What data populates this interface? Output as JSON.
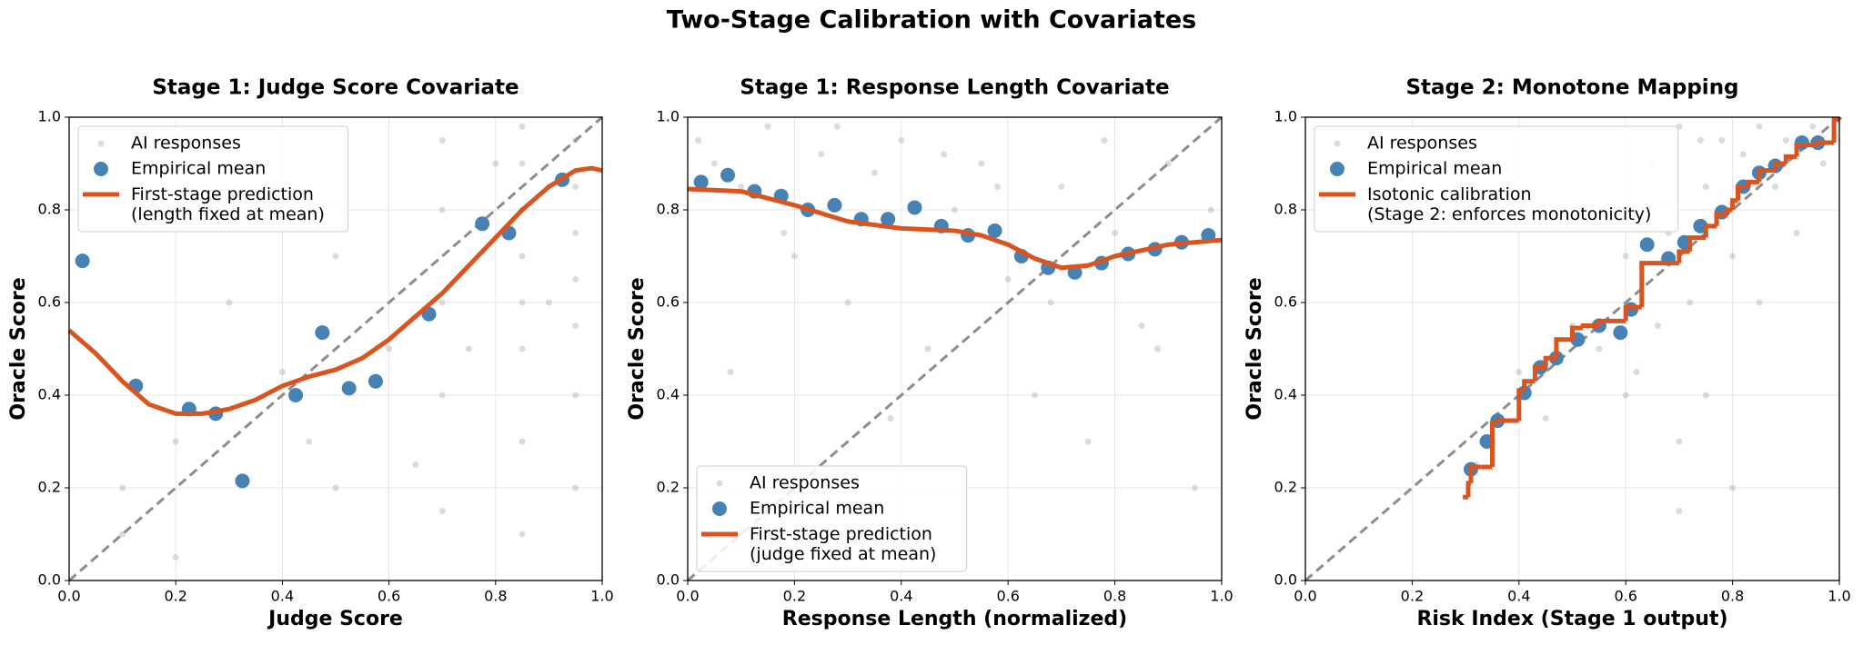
{
  "title": "Two-Stage Calibration with Covariates",
  "chart_data": [
    {
      "type": "scatter",
      "title": "Stage 1: Judge Score Covariate",
      "xlabel": "Judge Score",
      "ylabel": "Oracle Score",
      "xlim": [
        0,
        1
      ],
      "ylim": [
        0,
        1
      ],
      "xticks": [
        {
          "value": 0,
          "label": "0.0"
        },
        {
          "value": 0.2,
          "label": "0.2"
        },
        {
          "value": 0.4,
          "label": "0.4"
        },
        {
          "value": 0.6,
          "label": "0.6"
        },
        {
          "value": 0.8,
          "label": "0.8"
        },
        {
          "value": 1,
          "label": "1.0"
        }
      ],
      "yticks": [
        {
          "value": 0,
          "label": "0.0"
        },
        {
          "value": 0.2,
          "label": "0.2"
        },
        {
          "value": 0.4,
          "label": "0.4"
        },
        {
          "value": 0.6,
          "label": "0.6"
        },
        {
          "value": 0.8,
          "label": "0.8"
        },
        {
          "value": 1,
          "label": "1.0"
        }
      ],
      "grid": true,
      "legend": "upper left",
      "series": [
        {
          "name": "AI responses",
          "mark": "points",
          "color": "#9a9a9a",
          "x": [
            0.85,
            0.85,
            0.85,
            0.85,
            0.85,
            0.85,
            0.85,
            0.85,
            0.95,
            0.95,
            0.95,
            0.95,
            0.95,
            0.95,
            0.95,
            0.7,
            0.7,
            0.7,
            0.7,
            0.7,
            0.1,
            0.1,
            0.2,
            0.2,
            0.3,
            0.45,
            0.5,
            0.5,
            0.6,
            0.65,
            0.8,
            0.9,
            0.75,
            0.4
          ],
          "values": [
            0.98,
            0.9,
            0.8,
            0.7,
            0.6,
            0.5,
            0.3,
            0.1,
            0.95,
            0.85,
            0.75,
            0.65,
            0.55,
            0.4,
            0.2,
            0.95,
            0.8,
            0.6,
            0.4,
            0.15,
            0.2,
            0.1,
            0.3,
            0.05,
            0.6,
            0.3,
            0.7,
            0.2,
            0.5,
            0.25,
            0.9,
            0.6,
            0.5,
            0.45
          ]
        },
        {
          "name": "Empirical mean",
          "mark": "dots",
          "color": "#4682b4",
          "x": [
            0.025,
            0.125,
            0.225,
            0.275,
            0.325,
            0.425,
            0.475,
            0.525,
            0.575,
            0.675,
            0.775,
            0.825,
            0.925
          ],
          "values": [
            0.69,
            0.42,
            0.37,
            0.36,
            0.215,
            0.4,
            0.535,
            0.415,
            0.43,
            0.575,
            0.77,
            0.75,
            0.865
          ]
        },
        {
          "name": "First-stage prediction\n(length fixed at mean)",
          "mark": "line",
          "color": "#d9541e",
          "x": [
            0,
            0.05,
            0.1,
            0.15,
            0.2,
            0.25,
            0.3,
            0.35,
            0.4,
            0.45,
            0.5,
            0.55,
            0.6,
            0.65,
            0.7,
            0.75,
            0.8,
            0.85,
            0.9,
            0.95,
            0.98,
            1
          ],
          "values": [
            0.54,
            0.49,
            0.43,
            0.38,
            0.36,
            0.36,
            0.37,
            0.39,
            0.42,
            0.44,
            0.455,
            0.48,
            0.52,
            0.57,
            0.62,
            0.68,
            0.74,
            0.8,
            0.85,
            0.885,
            0.89,
            0.885
          ]
        }
      ]
    },
    {
      "type": "scatter",
      "title": "Stage 1: Response Length Covariate",
      "xlabel": "Response Length (normalized)",
      "ylabel": "Oracle Score",
      "xlim": [
        0,
        1
      ],
      "ylim": [
        0,
        1
      ],
      "xticks": [
        {
          "value": 0,
          "label": "0.0"
        },
        {
          "value": 0.2,
          "label": "0.2"
        },
        {
          "value": 0.4,
          "label": "0.4"
        },
        {
          "value": 0.6,
          "label": "0.6"
        },
        {
          "value": 0.8,
          "label": "0.8"
        },
        {
          "value": 1,
          "label": "1.0"
        }
      ],
      "yticks": [
        {
          "value": 0,
          "label": "0.0"
        },
        {
          "value": 0.2,
          "label": "0.2"
        },
        {
          "value": 0.4,
          "label": "0.4"
        },
        {
          "value": 0.6,
          "label": "0.6"
        },
        {
          "value": 0.8,
          "label": "0.8"
        },
        {
          "value": 1,
          "label": "1.0"
        }
      ],
      "grid": true,
      "legend": "lower left",
      "series": [
        {
          "name": "AI responses",
          "mark": "points",
          "color": "#9a9a9a",
          "x": [
            0.02,
            0.05,
            0.1,
            0.15,
            0.2,
            0.25,
            0.3,
            0.35,
            0.4,
            0.45,
            0.5,
            0.55,
            0.6,
            0.65,
            0.7,
            0.75,
            0.8,
            0.85,
            0.9,
            0.95,
            0.08,
            0.18,
            0.28,
            0.38,
            0.48,
            0.58,
            0.68,
            0.78,
            0.88,
            0.98
          ],
          "values": [
            0.95,
            0.9,
            0.85,
            0.98,
            0.7,
            0.92,
            0.6,
            0.88,
            0.95,
            0.5,
            0.8,
            0.9,
            0.65,
            0.4,
            0.85,
            0.3,
            0.75,
            0.55,
            0.9,
            0.2,
            0.45,
            0.75,
            0.98,
            0.35,
            0.92,
            0.85,
            0.6,
            0.95,
            0.5,
            0.8
          ]
        },
        {
          "name": "Empirical mean",
          "mark": "dots",
          "color": "#4682b4",
          "x": [
            0.025,
            0.075,
            0.125,
            0.175,
            0.225,
            0.275,
            0.325,
            0.375,
            0.425,
            0.475,
            0.525,
            0.575,
            0.625,
            0.675,
            0.725,
            0.775,
            0.825,
            0.875,
            0.925,
            0.975
          ],
          "values": [
            0.86,
            0.875,
            0.84,
            0.83,
            0.8,
            0.81,
            0.78,
            0.78,
            0.805,
            0.765,
            0.745,
            0.755,
            0.7,
            0.675,
            0.665,
            0.685,
            0.705,
            0.715,
            0.73,
            0.745
          ]
        },
        {
          "name": "First-stage prediction\n(judge fixed at mean)",
          "mark": "line",
          "color": "#d9541e",
          "x": [
            0,
            0.1,
            0.2,
            0.3,
            0.4,
            0.5,
            0.55,
            0.6,
            0.65,
            0.7,
            0.75,
            0.8,
            0.9,
            1
          ],
          "values": [
            0.845,
            0.84,
            0.81,
            0.775,
            0.76,
            0.755,
            0.745,
            0.725,
            0.695,
            0.675,
            0.68,
            0.7,
            0.725,
            0.735
          ]
        }
      ]
    },
    {
      "type": "scatter",
      "title": "Stage 2: Monotone Mapping",
      "xlabel": "Risk Index (Stage 1 output)",
      "ylabel": "Oracle Score",
      "xlim": [
        0,
        1
      ],
      "ylim": [
        0,
        1
      ],
      "xticks": [
        {
          "value": 0,
          "label": "0.0"
        },
        {
          "value": 0.2,
          "label": "0.2"
        },
        {
          "value": 0.4,
          "label": "0.4"
        },
        {
          "value": 0.6,
          "label": "0.6"
        },
        {
          "value": 0.8,
          "label": "0.8"
        },
        {
          "value": 1,
          "label": "1.0"
        }
      ],
      "yticks": [
        {
          "value": 0,
          "label": "0.0"
        },
        {
          "value": 0.2,
          "label": "0.2"
        },
        {
          "value": 0.4,
          "label": "0.4"
        },
        {
          "value": 0.6,
          "label": "0.6"
        },
        {
          "value": 0.8,
          "label": "0.8"
        },
        {
          "value": 1,
          "label": "1.0"
        }
      ],
      "grid": true,
      "legend": "upper left",
      "series": [
        {
          "name": "AI responses",
          "mark": "points",
          "color": "#9a9a9a",
          "x": [
            0.32,
            0.35,
            0.4,
            0.45,
            0.5,
            0.55,
            0.6,
            0.62,
            0.65,
            0.68,
            0.7,
            0.7,
            0.72,
            0.75,
            0.75,
            0.78,
            0.8,
            0.8,
            0.82,
            0.85,
            0.85,
            0.88,
            0.9,
            0.92,
            0.95,
            0.97,
            0.6,
            0.66,
            0.7,
            0.74
          ],
          "values": [
            0.25,
            0.3,
            0.45,
            0.35,
            0.55,
            0.5,
            0.7,
            0.45,
            0.9,
            0.75,
            0.98,
            0.3,
            0.6,
            0.85,
            0.4,
            0.95,
            0.7,
            0.2,
            0.92,
            0.98,
            0.6,
            0.85,
            0.95,
            0.75,
            0.98,
            0.9,
            0.4,
            0.55,
            0.15,
            0.95
          ]
        },
        {
          "name": "Empirical mean",
          "mark": "dots",
          "color": "#4682b4",
          "x": [
            0.31,
            0.34,
            0.36,
            0.41,
            0.44,
            0.47,
            0.51,
            0.55,
            0.59,
            0.61,
            0.64,
            0.68,
            0.71,
            0.74,
            0.78,
            0.82,
            0.85,
            0.88,
            0.93,
            0.96
          ],
          "values": [
            0.24,
            0.3,
            0.345,
            0.405,
            0.46,
            0.48,
            0.52,
            0.55,
            0.535,
            0.585,
            0.725,
            0.695,
            0.73,
            0.765,
            0.795,
            0.85,
            0.88,
            0.895,
            0.945,
            0.945
          ]
        },
        {
          "name": "Isotonic calibration\n(Stage 2: enforces monotonicity)",
          "mark": "step",
          "color": "#d9541e",
          "x": [
            0.295,
            0.305,
            0.31,
            0.33,
            0.35,
            0.36,
            0.4,
            0.41,
            0.43,
            0.45,
            0.47,
            0.5,
            0.52,
            0.55,
            0.6,
            0.63,
            0.68,
            0.7,
            0.72,
            0.75,
            0.77,
            0.79,
            0.8,
            0.81,
            0.83,
            0.85,
            0.88,
            0.9,
            0.92,
            0.96,
            0.99,
            1
          ],
          "values": [
            0.18,
            0.21,
            0.245,
            0.245,
            0.34,
            0.345,
            0.41,
            0.43,
            0.46,
            0.48,
            0.52,
            0.545,
            0.55,
            0.56,
            0.59,
            0.685,
            0.685,
            0.71,
            0.74,
            0.765,
            0.79,
            0.8,
            0.82,
            0.85,
            0.86,
            0.885,
            0.9,
            0.915,
            0.94,
            0.945,
            0.995,
            1
          ]
        }
      ]
    }
  ]
}
